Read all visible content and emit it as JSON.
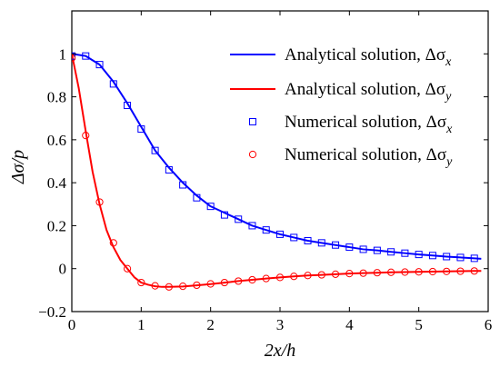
{
  "chart_data": {
    "type": "line",
    "title": "",
    "xlabel": "2x/h",
    "ylabel": "Δσ/p",
    "xlim": [
      0,
      6
    ],
    "ylim": [
      -0.2,
      1.2
    ],
    "x_ticks": [
      "0",
      "1",
      "2",
      "3",
      "4",
      "5",
      "6"
    ],
    "y_ticks": [
      "−0.2",
      "0",
      "0.2",
      "0.4",
      "0.6",
      "0.8",
      "1"
    ],
    "grid": false,
    "legend_position": "top-right",
    "series": [
      {
        "name": "Analytical solution, Δσx",
        "style": "line",
        "color": "#0000ff",
        "x": [
          0,
          0.2,
          0.4,
          0.6,
          0.8,
          1.0,
          1.2,
          1.4,
          1.6,
          1.8,
          2.0,
          2.2,
          2.4,
          2.6,
          2.8,
          3.0,
          3.2,
          3.4,
          3.6,
          3.8,
          4.0,
          4.2,
          4.4,
          4.6,
          4.8,
          5.0,
          5.2,
          5.4,
          5.6,
          5.8,
          5.9
        ],
        "y": [
          1.0,
          0.99,
          0.95,
          0.87,
          0.77,
          0.66,
          0.55,
          0.47,
          0.4,
          0.34,
          0.29,
          0.26,
          0.23,
          0.2,
          0.18,
          0.16,
          0.145,
          0.13,
          0.12,
          0.11,
          0.1,
          0.09,
          0.085,
          0.078,
          0.072,
          0.066,
          0.061,
          0.056,
          0.052,
          0.048,
          0.046
        ]
      },
      {
        "name": "Analytical solution, Δσy",
        "style": "line",
        "color": "#ff0000",
        "x": [
          0,
          0.1,
          0.2,
          0.3,
          0.4,
          0.5,
          0.6,
          0.7,
          0.8,
          0.9,
          1.0,
          1.1,
          1.2,
          1.3,
          1.4,
          1.6,
          1.8,
          2.0,
          2.2,
          2.4,
          2.6,
          2.8,
          3.0,
          3.2,
          3.4,
          3.6,
          3.8,
          4.0,
          4.2,
          4.4,
          4.6,
          4.8,
          5.0,
          5.2,
          5.4,
          5.6,
          5.8,
          5.9
        ],
        "y": [
          1.0,
          0.84,
          0.64,
          0.45,
          0.3,
          0.18,
          0.1,
          0.04,
          0.0,
          -0.04,
          -0.065,
          -0.075,
          -0.082,
          -0.085,
          -0.085,
          -0.083,
          -0.078,
          -0.072,
          -0.065,
          -0.058,
          -0.052,
          -0.046,
          -0.041,
          -0.036,
          -0.032,
          -0.029,
          -0.026,
          -0.023,
          -0.021,
          -0.019,
          -0.017,
          -0.016,
          -0.015,
          -0.014,
          -0.013,
          -0.012,
          -0.011,
          -0.011
        ]
      },
      {
        "name": "Numerical solution, Δσx",
        "style": "square-markers",
        "color": "#0000ff",
        "x": [
          0.0,
          0.2,
          0.4,
          0.6,
          0.8,
          1.0,
          1.2,
          1.4,
          1.6,
          1.8,
          2.0,
          2.2,
          2.4,
          2.6,
          2.8,
          3.0,
          3.2,
          3.4,
          3.6,
          3.8,
          4.0,
          4.2,
          4.4,
          4.6,
          4.8,
          5.0,
          5.2,
          5.4,
          5.6,
          5.8
        ],
        "y": [
          0.99,
          0.99,
          0.95,
          0.86,
          0.76,
          0.65,
          0.55,
          0.46,
          0.39,
          0.33,
          0.29,
          0.25,
          0.23,
          0.2,
          0.18,
          0.16,
          0.145,
          0.13,
          0.12,
          0.11,
          0.1,
          0.09,
          0.085,
          0.078,
          0.072,
          0.066,
          0.061,
          0.056,
          0.052,
          0.048
        ]
      },
      {
        "name": "Numerical solution, Δσy",
        "style": "circle-markers",
        "color": "#ff0000",
        "x": [
          0.0,
          0.2,
          0.4,
          0.6,
          0.8,
          1.0,
          1.2,
          1.4,
          1.6,
          1.8,
          2.0,
          2.2,
          2.4,
          2.6,
          2.8,
          3.0,
          3.2,
          3.4,
          3.6,
          3.8,
          4.0,
          4.2,
          4.4,
          4.6,
          4.8,
          5.0,
          5.2,
          5.4,
          5.6,
          5.8
        ],
        "y": [
          0.98,
          0.62,
          0.31,
          0.12,
          0.0,
          -0.065,
          -0.08,
          -0.085,
          -0.082,
          -0.077,
          -0.071,
          -0.065,
          -0.058,
          -0.052,
          -0.046,
          -0.041,
          -0.036,
          -0.032,
          -0.029,
          -0.026,
          -0.023,
          -0.021,
          -0.019,
          -0.017,
          -0.016,
          -0.015,
          -0.014,
          -0.013,
          -0.012,
          -0.011
        ]
      }
    ],
    "legend": [
      {
        "text": "Analytical solution, Δσ",
        "sub": "x"
      },
      {
        "text": "Analytical solution, Δσ",
        "sub": "y"
      },
      {
        "text": "Numerical solution, Δσ",
        "sub": "x"
      },
      {
        "text": "Numerical solution, Δσ",
        "sub": "y"
      }
    ]
  }
}
